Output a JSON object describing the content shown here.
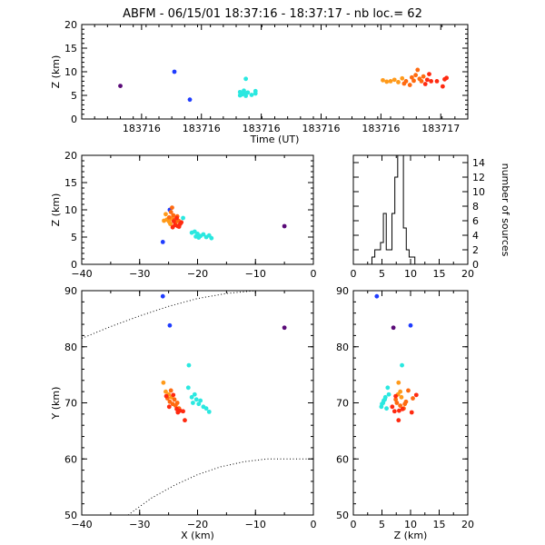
{
  "title": "ABFM - 06/15/01 18:37:16 - 18:37:17 - nb loc.=      62",
  "colors": {
    "purple": "#5a0a78",
    "blue": "#1f3cff",
    "cyan": "#2ae8e0",
    "orange": "#ff9a1a",
    "darkorange": "#ff6a10",
    "red": "#ff2a10"
  },
  "chart_data": [
    {
      "id": "z-vs-time",
      "type": "scatter",
      "xlabel": "Time (UT)",
      "ylabel": "Z (km)",
      "x_ticks": [
        "183716",
        "183716",
        "183716",
        "183716",
        "183716",
        "183717"
      ],
      "xlim": [
        0,
        1
      ],
      "ylim": [
        0,
        20
      ],
      "y_ticks": [
        "0",
        "5",
        "10",
        "15",
        "20"
      ],
      "points": [
        {
          "x": 0.1,
          "y": 7.0,
          "c": "purple"
        },
        {
          "x": 0.24,
          "y": 10.0,
          "c": "blue"
        },
        {
          "x": 0.28,
          "y": 4.1,
          "c": "blue"
        },
        {
          "x": 0.425,
          "y": 8.5,
          "c": "cyan"
        },
        {
          "x": 0.41,
          "y": 5.7,
          "c": "cyan"
        },
        {
          "x": 0.42,
          "y": 6.0,
          "c": "cyan"
        },
        {
          "x": 0.415,
          "y": 5.2,
          "c": "cyan"
        },
        {
          "x": 0.43,
          "y": 5.6,
          "c": "cyan"
        },
        {
          "x": 0.44,
          "y": 5.1,
          "c": "cyan"
        },
        {
          "x": 0.45,
          "y": 5.4,
          "c": "cyan"
        },
        {
          "x": 0.425,
          "y": 4.9,
          "c": "cyan"
        },
        {
          "x": 0.41,
          "y": 5.0,
          "c": "cyan"
        },
        {
          "x": 0.45,
          "y": 5.9,
          "c": "cyan"
        },
        {
          "x": 0.42,
          "y": 5.5,
          "c": "cyan"
        },
        {
          "x": 0.78,
          "y": 8.2,
          "c": "orange"
        },
        {
          "x": 0.79,
          "y": 7.9,
          "c": "orange"
        },
        {
          "x": 0.8,
          "y": 8.0,
          "c": "orange"
        },
        {
          "x": 0.81,
          "y": 8.3,
          "c": "orange"
        },
        {
          "x": 0.82,
          "y": 7.8,
          "c": "orange"
        },
        {
          "x": 0.83,
          "y": 8.6,
          "c": "orange"
        },
        {
          "x": 0.835,
          "y": 7.5,
          "c": "darkorange"
        },
        {
          "x": 0.84,
          "y": 8.0,
          "c": "darkorange"
        },
        {
          "x": 0.85,
          "y": 7.2,
          "c": "darkorange"
        },
        {
          "x": 0.855,
          "y": 8.8,
          "c": "darkorange"
        },
        {
          "x": 0.86,
          "y": 8.1,
          "c": "darkorange"
        },
        {
          "x": 0.865,
          "y": 9.3,
          "c": "darkorange"
        },
        {
          "x": 0.87,
          "y": 10.4,
          "c": "darkorange"
        },
        {
          "x": 0.875,
          "y": 8.5,
          "c": "darkorange"
        },
        {
          "x": 0.88,
          "y": 8.0,
          "c": "darkorange"
        },
        {
          "x": 0.885,
          "y": 9.0,
          "c": "darkorange"
        },
        {
          "x": 0.89,
          "y": 7.4,
          "c": "red"
        },
        {
          "x": 0.895,
          "y": 8.3,
          "c": "red"
        },
        {
          "x": 0.9,
          "y": 9.5,
          "c": "red"
        },
        {
          "x": 0.905,
          "y": 8.0,
          "c": "red"
        },
        {
          "x": 0.92,
          "y": 8.0,
          "c": "red"
        },
        {
          "x": 0.935,
          "y": 6.9,
          "c": "red"
        },
        {
          "x": 0.94,
          "y": 8.4,
          "c": "red"
        },
        {
          "x": 0.945,
          "y": 8.7,
          "c": "red"
        }
      ]
    },
    {
      "id": "z-vs-x",
      "type": "scatter",
      "xlabel": "",
      "ylabel": "Z (km)",
      "xlim": [
        -40,
        0
      ],
      "ylim": [
        0,
        20
      ],
      "x_ticks": [
        "−40",
        "−30",
        "−20",
        "−10",
        "0"
      ],
      "y_ticks": [
        "0",
        "5",
        "10",
        "15",
        "20"
      ],
      "points": [
        {
          "x": -5.0,
          "y": 7.0,
          "c": "purple"
        },
        {
          "x": -24.8,
          "y": 10.0,
          "c": "blue"
        },
        {
          "x": -26.0,
          "y": 4.1,
          "c": "blue"
        },
        {
          "x": -22.5,
          "y": 8.5,
          "c": "cyan"
        },
        {
          "x": -20.5,
          "y": 6.0,
          "c": "cyan"
        },
        {
          "x": -20.0,
          "y": 5.6,
          "c": "cyan"
        },
        {
          "x": -19.5,
          "y": 5.2,
          "c": "cyan"
        },
        {
          "x": -19.0,
          "y": 5.5,
          "c": "cyan"
        },
        {
          "x": -18.5,
          "y": 5.0,
          "c": "cyan"
        },
        {
          "x": -18.0,
          "y": 5.3,
          "c": "cyan"
        },
        {
          "x": -19.8,
          "y": 4.9,
          "c": "cyan"
        },
        {
          "x": -21.0,
          "y": 5.8,
          "c": "cyan"
        },
        {
          "x": -17.6,
          "y": 4.8,
          "c": "cyan"
        },
        {
          "x": -20.3,
          "y": 5.1,
          "c": "cyan"
        },
        {
          "x": -25.8,
          "y": 8.0,
          "c": "orange"
        },
        {
          "x": -25.3,
          "y": 8.2,
          "c": "orange"
        },
        {
          "x": -24.9,
          "y": 7.8,
          "c": "orange"
        },
        {
          "x": -24.5,
          "y": 8.4,
          "c": "orange"
        },
        {
          "x": -25.5,
          "y": 9.2,
          "c": "orange"
        },
        {
          "x": -24.7,
          "y": 7.4,
          "c": "orange"
        },
        {
          "x": -24.4,
          "y": 10.4,
          "c": "darkorange"
        },
        {
          "x": -24.2,
          "y": 9.0,
          "c": "darkorange"
        },
        {
          "x": -24.0,
          "y": 8.2,
          "c": "darkorange"
        },
        {
          "x": -23.8,
          "y": 7.6,
          "c": "darkorange"
        },
        {
          "x": -23.5,
          "y": 8.8,
          "c": "darkorange"
        },
        {
          "x": -24.6,
          "y": 9.6,
          "c": "darkorange"
        },
        {
          "x": -23.3,
          "y": 8.0,
          "c": "darkorange"
        },
        {
          "x": -24.9,
          "y": 8.6,
          "c": "darkorange"
        },
        {
          "x": -23.9,
          "y": 7.2,
          "c": "red"
        },
        {
          "x": -23.4,
          "y": 7.0,
          "c": "red"
        },
        {
          "x": -24.3,
          "y": 6.8,
          "c": "red"
        },
        {
          "x": -23.0,
          "y": 7.4,
          "c": "red"
        },
        {
          "x": -23.6,
          "y": 8.5,
          "c": "red"
        },
        {
          "x": -24.1,
          "y": 7.9,
          "c": "red"
        },
        {
          "x": -22.8,
          "y": 7.7,
          "c": "red"
        },
        {
          "x": -23.2,
          "y": 6.9,
          "c": "red"
        }
      ]
    },
    {
      "id": "z-histogram",
      "type": "bar",
      "xlabel": "",
      "ylabel": "number of sources",
      "xlim": [
        0,
        20
      ],
      "ylim": [
        0,
        15
      ],
      "x_ticks": [
        "0",
        "5",
        "10",
        "15",
        "20"
      ],
      "y_ticks": [
        "0",
        "2",
        "4",
        "6",
        "8",
        "10",
        "12",
        "14"
      ],
      "bins": [
        {
          "z": 3.0,
          "n": 0
        },
        {
          "z": 3.5,
          "n": 1
        },
        {
          "z": 4.0,
          "n": 2
        },
        {
          "z": 4.5,
          "n": 2
        },
        {
          "z": 5.0,
          "n": 3
        },
        {
          "z": 5.5,
          "n": 7
        },
        {
          "z": 6.0,
          "n": 2
        },
        {
          "z": 6.5,
          "n": 2
        },
        {
          "z": 7.0,
          "n": 7
        },
        {
          "z": 7.5,
          "n": 12
        },
        {
          "z": 8.0,
          "n": 15
        },
        {
          "z": 8.5,
          "n": 15
        },
        {
          "z": 9.0,
          "n": 5
        },
        {
          "z": 9.5,
          "n": 2
        },
        {
          "z": 10.0,
          "n": 1
        },
        {
          "z": 10.5,
          "n": 1
        },
        {
          "z": 11.0,
          "n": 0
        }
      ]
    },
    {
      "id": "y-vs-x",
      "type": "scatter",
      "xlabel": "X (km)",
      "ylabel": "Y (km)",
      "xlim": [
        -40,
        0
      ],
      "ylim": [
        50,
        90
      ],
      "x_ticks": [
        "−40",
        "−30",
        "−20",
        "−10",
        "0"
      ],
      "y_ticks": [
        "50",
        "60",
        "70",
        "80",
        "90"
      ],
      "points": [
        {
          "x": -26.0,
          "y": 89.0,
          "c": "blue"
        },
        {
          "x": -24.8,
          "y": 83.8,
          "c": "blue"
        },
        {
          "x": -5.0,
          "y": 83.4,
          "c": "purple"
        },
        {
          "x": -21.5,
          "y": 76.7,
          "c": "cyan"
        },
        {
          "x": -21.6,
          "y": 72.7,
          "c": "cyan"
        },
        {
          "x": -21.0,
          "y": 71.0,
          "c": "cyan"
        },
        {
          "x": -20.8,
          "y": 70.0,
          "c": "cyan"
        },
        {
          "x": -20.2,
          "y": 70.6,
          "c": "cyan"
        },
        {
          "x": -19.8,
          "y": 69.8,
          "c": "cyan"
        },
        {
          "x": -19.5,
          "y": 70.4,
          "c": "cyan"
        },
        {
          "x": -19.0,
          "y": 69.3,
          "c": "cyan"
        },
        {
          "x": -18.5,
          "y": 69.0,
          "c": "cyan"
        },
        {
          "x": -18.0,
          "y": 68.4,
          "c": "cyan"
        },
        {
          "x": -20.5,
          "y": 71.5,
          "c": "cyan"
        },
        {
          "x": -25.9,
          "y": 73.6,
          "c": "orange"
        },
        {
          "x": -25.5,
          "y": 72.0,
          "c": "orange"
        },
        {
          "x": -25.0,
          "y": 71.5,
          "c": "orange"
        },
        {
          "x": -24.5,
          "y": 71.0,
          "c": "orange"
        },
        {
          "x": -24.8,
          "y": 70.2,
          "c": "darkorange"
        },
        {
          "x": -24.0,
          "y": 70.6,
          "c": "darkorange"
        },
        {
          "x": -25.2,
          "y": 70.8,
          "c": "darkorange"
        },
        {
          "x": -24.3,
          "y": 69.8,
          "c": "darkorange"
        },
        {
          "x": -23.8,
          "y": 69.5,
          "c": "darkorange"
        },
        {
          "x": -23.5,
          "y": 70.0,
          "c": "darkorange"
        },
        {
          "x": -23.2,
          "y": 69.0,
          "c": "darkorange"
        },
        {
          "x": -24.6,
          "y": 72.2,
          "c": "darkorange"
        },
        {
          "x": -23.0,
          "y": 68.6,
          "c": "red"
        },
        {
          "x": -23.6,
          "y": 68.9,
          "c": "red"
        },
        {
          "x": -22.5,
          "y": 68.5,
          "c": "red"
        },
        {
          "x": -24.9,
          "y": 69.3,
          "c": "red"
        },
        {
          "x": -25.4,
          "y": 71.2,
          "c": "red"
        },
        {
          "x": -22.2,
          "y": 66.9,
          "c": "red"
        },
        {
          "x": -24.2,
          "y": 71.4,
          "c": "red"
        },
        {
          "x": -23.4,
          "y": 68.3,
          "c": "red"
        }
      ],
      "boundary_curves": [
        [
          [
            -40,
            81.5
          ],
          [
            -35,
            83.6
          ],
          [
            -30,
            85.5
          ],
          [
            -25,
            87.2
          ],
          [
            -20,
            88.6
          ],
          [
            -15,
            89.5
          ],
          [
            -10,
            90.0
          ]
        ],
        [
          [
            -32,
            50.0
          ],
          [
            -28,
            53.0
          ],
          [
            -24,
            55.3
          ],
          [
            -20,
            57.2
          ],
          [
            -16,
            58.6
          ],
          [
            -12,
            59.5
          ],
          [
            -8,
            60.0
          ],
          [
            0,
            60.0
          ]
        ]
      ]
    },
    {
      "id": "y-vs-z",
      "type": "scatter",
      "xlabel": "Z (km)",
      "ylabel": "",
      "xlim": [
        0,
        20
      ],
      "ylim": [
        50,
        90
      ],
      "x_ticks": [
        "0",
        "5",
        "10",
        "15",
        "20"
      ],
      "y_ticks": [
        "50",
        "60",
        "70",
        "80",
        "90"
      ],
      "points": [
        {
          "x": 4.1,
          "y": 89.0,
          "c": "blue"
        },
        {
          "x": 10.0,
          "y": 83.8,
          "c": "blue"
        },
        {
          "x": 7.0,
          "y": 83.4,
          "c": "purple"
        },
        {
          "x": 8.5,
          "y": 76.7,
          "c": "cyan"
        },
        {
          "x": 6.0,
          "y": 72.7,
          "c": "cyan"
        },
        {
          "x": 5.6,
          "y": 71.0,
          "c": "cyan"
        },
        {
          "x": 5.2,
          "y": 70.0,
          "c": "cyan"
        },
        {
          "x": 5.5,
          "y": 70.6,
          "c": "cyan"
        },
        {
          "x": 5.0,
          "y": 69.8,
          "c": "cyan"
        },
        {
          "x": 5.3,
          "y": 70.4,
          "c": "cyan"
        },
        {
          "x": 4.9,
          "y": 69.3,
          "c": "cyan"
        },
        {
          "x": 5.8,
          "y": 69.0,
          "c": "cyan"
        },
        {
          "x": 6.2,
          "y": 71.5,
          "c": "cyan"
        },
        {
          "x": 7.9,
          "y": 73.6,
          "c": "orange"
        },
        {
          "x": 8.2,
          "y": 72.0,
          "c": "orange"
        },
        {
          "x": 7.8,
          "y": 71.5,
          "c": "orange"
        },
        {
          "x": 8.4,
          "y": 71.0,
          "c": "orange"
        },
        {
          "x": 9.2,
          "y": 70.2,
          "c": "darkorange"
        },
        {
          "x": 7.4,
          "y": 70.6,
          "c": "darkorange"
        },
        {
          "x": 10.4,
          "y": 70.8,
          "c": "darkorange"
        },
        {
          "x": 9.0,
          "y": 69.8,
          "c": "darkorange"
        },
        {
          "x": 8.2,
          "y": 69.5,
          "c": "darkorange"
        },
        {
          "x": 7.6,
          "y": 70.0,
          "c": "darkorange"
        },
        {
          "x": 8.8,
          "y": 69.0,
          "c": "darkorange"
        },
        {
          "x": 9.6,
          "y": 72.2,
          "c": "darkorange"
        },
        {
          "x": 8.0,
          "y": 68.6,
          "c": "red"
        },
        {
          "x": 8.6,
          "y": 68.9,
          "c": "red"
        },
        {
          "x": 7.2,
          "y": 68.5,
          "c": "red"
        },
        {
          "x": 6.8,
          "y": 69.3,
          "c": "red"
        },
        {
          "x": 7.4,
          "y": 71.2,
          "c": "red"
        },
        {
          "x": 7.9,
          "y": 66.9,
          "c": "red"
        },
        {
          "x": 11.0,
          "y": 71.4,
          "c": "red"
        },
        {
          "x": 10.2,
          "y": 68.3,
          "c": "red"
        }
      ]
    }
  ]
}
